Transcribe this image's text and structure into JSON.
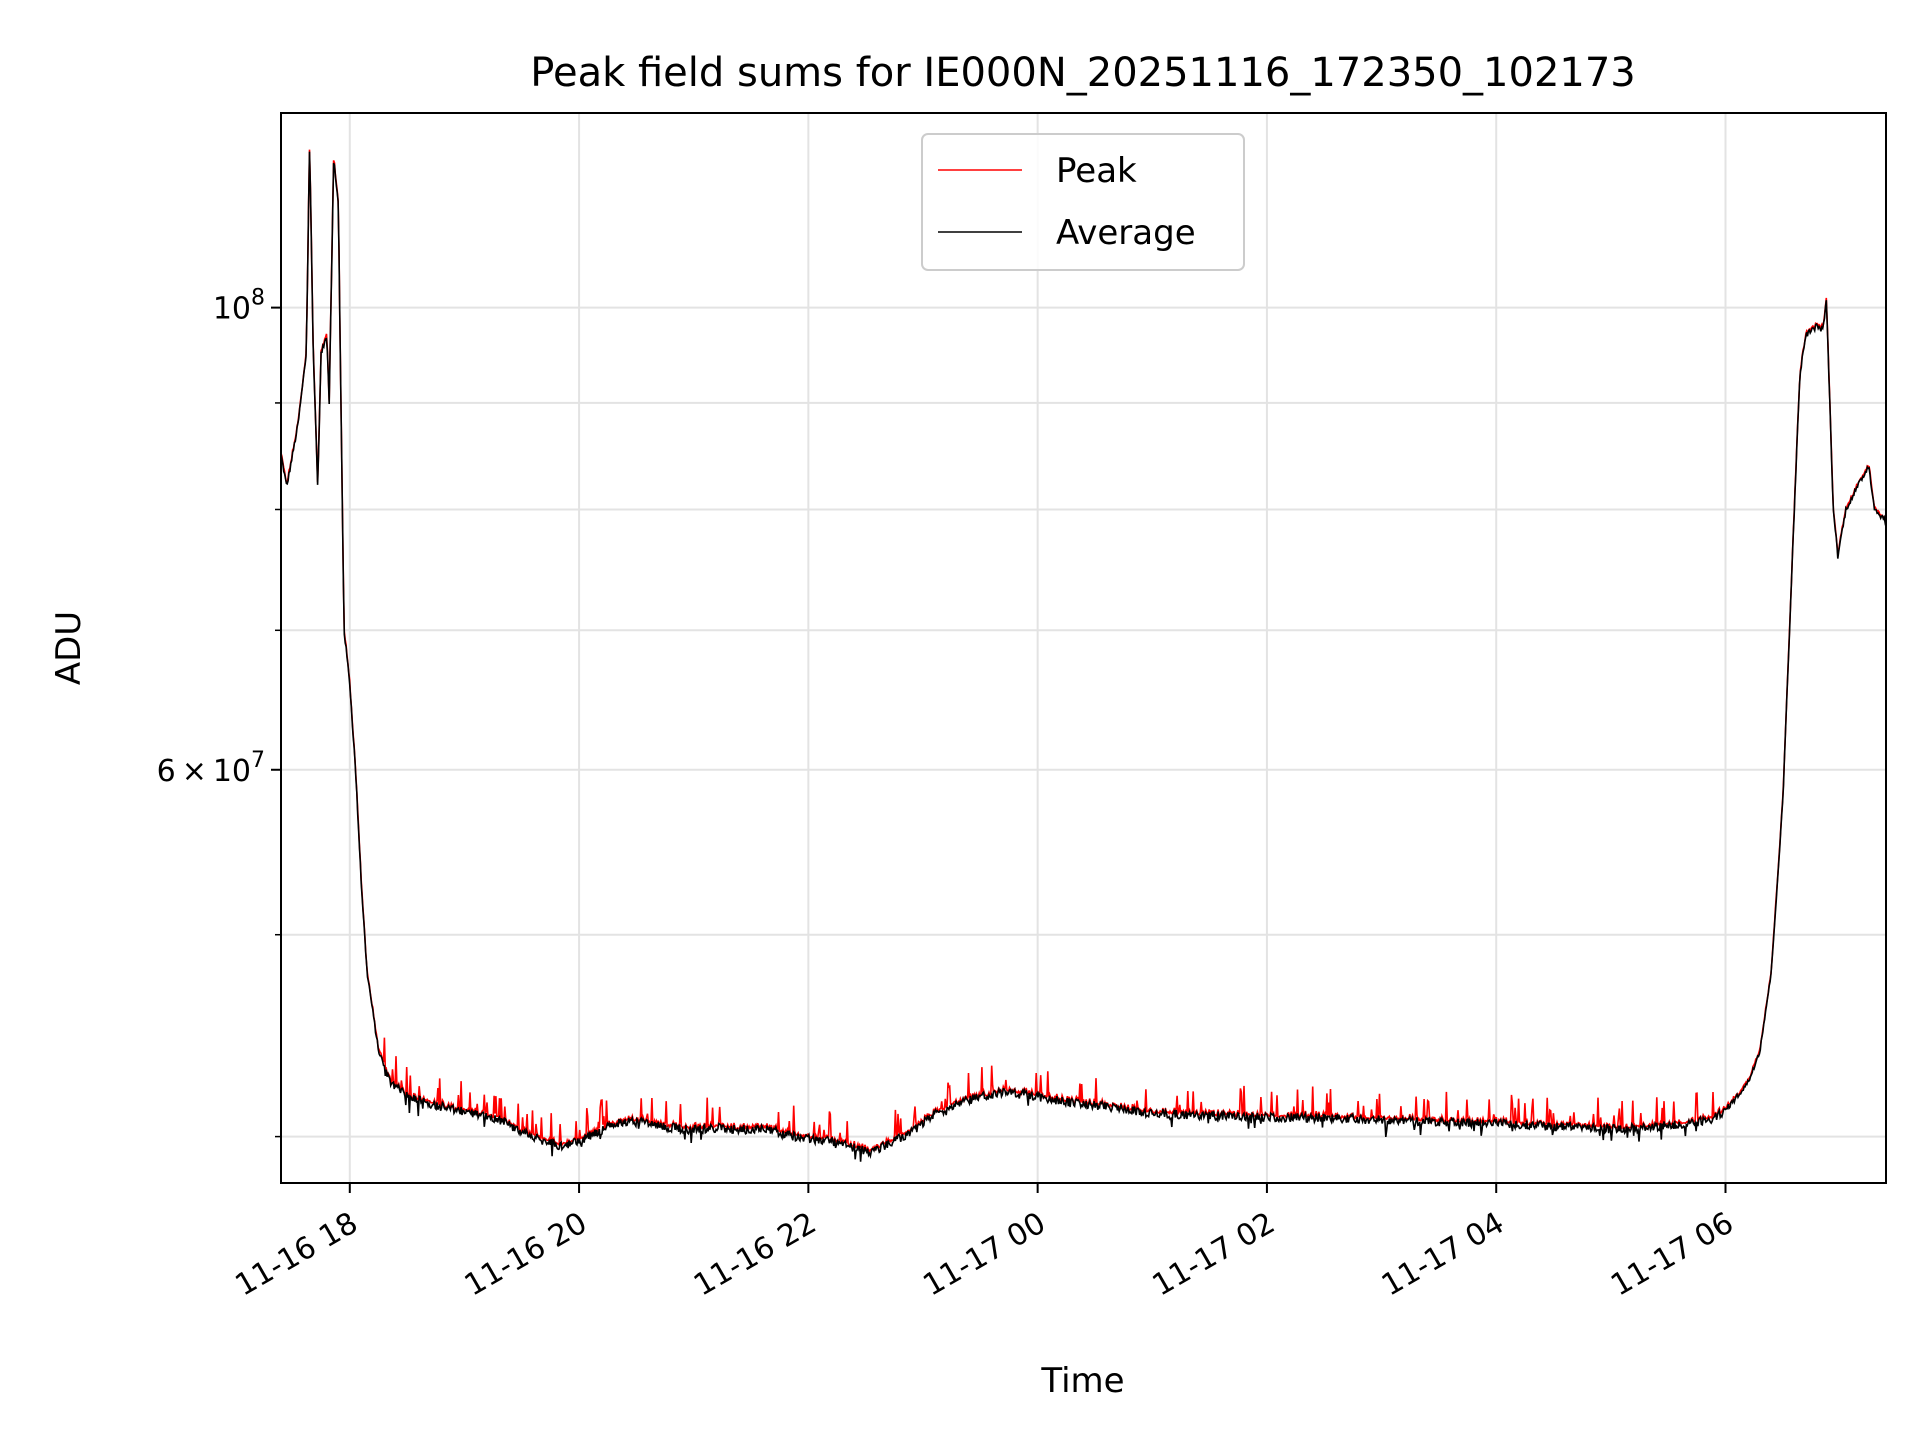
{
  "chart_data": {
    "type": "line",
    "title": "Peak field sums for IE000N_20251116_172350_102173",
    "xlabel": "Time",
    "ylabel": "ADU",
    "yscale": "log",
    "xlim": [
      17.4,
      31.4
    ],
    "ylim": [
      38000000,
      124000000
    ],
    "grid": true,
    "legend_position": "top-center",
    "x_ticks": [
      {
        "value": 18,
        "label": "11-16 18"
      },
      {
        "value": 20,
        "label": "11-16 20"
      },
      {
        "value": 22,
        "label": "11-16 22"
      },
      {
        "value": 24,
        "label": "11-17 00"
      },
      {
        "value": 26,
        "label": "11-17 02"
      },
      {
        "value": 28,
        "label": "11-17 04"
      },
      {
        "value": 30,
        "label": "11-17 06"
      }
    ],
    "y_major_ticks": [
      {
        "value": 60000000,
        "base": "6",
        "times": "×",
        "exp_base": "10",
        "exp": "7"
      },
      {
        "value": 100000000,
        "base": "",
        "times": "",
        "exp_base": "10",
        "exp": "8"
      }
    ],
    "y_minor_ticks": [
      40000000,
      50000000,
      70000000,
      80000000,
      90000000
    ],
    "series": [
      {
        "name": "Peak",
        "color": "#ff0000"
      },
      {
        "name": "Average",
        "color": "#000000"
      }
    ],
    "average_points": [
      [
        17.4,
        85000000
      ],
      [
        17.45,
        82000000
      ],
      [
        17.55,
        88000000
      ],
      [
        17.62,
        95000000
      ],
      [
        17.65,
        120000000
      ],
      [
        17.68,
        96000000
      ],
      [
        17.72,
        82000000
      ],
      [
        17.75,
        95000000
      ],
      [
        17.8,
        97000000
      ],
      [
        17.82,
        90000000
      ],
      [
        17.86,
        118000000
      ],
      [
        17.9,
        112000000
      ],
      [
        17.95,
        70000000
      ],
      [
        18.0,
        66000000
      ],
      [
        18.05,
        60000000
      ],
      [
        18.1,
        53000000
      ],
      [
        18.15,
        48000000
      ],
      [
        18.25,
        44000000
      ],
      [
        18.35,
        42500000
      ],
      [
        18.5,
        41800000
      ],
      [
        18.7,
        41500000
      ],
      [
        18.9,
        41200000
      ],
      [
        19.1,
        41000000
      ],
      [
        19.3,
        40800000
      ],
      [
        19.5,
        40200000
      ],
      [
        19.7,
        39800000
      ],
      [
        19.85,
        39600000
      ],
      [
        20.0,
        39800000
      ],
      [
        20.2,
        40300000
      ],
      [
        20.4,
        40700000
      ],
      [
        20.6,
        40600000
      ],
      [
        20.8,
        40400000
      ],
      [
        21.0,
        40300000
      ],
      [
        21.2,
        40400000
      ],
      [
        21.4,
        40300000
      ],
      [
        21.6,
        40400000
      ],
      [
        21.8,
        40100000
      ],
      [
        22.0,
        39900000
      ],
      [
        22.2,
        39800000
      ],
      [
        22.4,
        39500000
      ],
      [
        22.55,
        39300000
      ],
      [
        22.7,
        39700000
      ],
      [
        22.9,
        40200000
      ],
      [
        23.1,
        41000000
      ],
      [
        23.3,
        41500000
      ],
      [
        23.5,
        41800000
      ],
      [
        23.7,
        42000000
      ],
      [
        23.9,
        41900000
      ],
      [
        24.1,
        41700000
      ],
      [
        24.3,
        41500000
      ],
      [
        24.5,
        41400000
      ],
      [
        24.7,
        41300000
      ],
      [
        24.9,
        41100000
      ],
      [
        25.2,
        41000000
      ],
      [
        25.5,
        40950000
      ],
      [
        25.8,
        40900000
      ],
      [
        26.1,
        40850000
      ],
      [
        26.4,
        40850000
      ],
      [
        26.7,
        40800000
      ],
      [
        27.0,
        40750000
      ],
      [
        27.3,
        40700000
      ],
      [
        27.6,
        40650000
      ],
      [
        27.9,
        40600000
      ],
      [
        28.2,
        40550000
      ],
      [
        28.5,
        40450000
      ],
      [
        28.8,
        40400000
      ],
      [
        29.1,
        40350000
      ],
      [
        29.4,
        40450000
      ],
      [
        29.7,
        40600000
      ],
      [
        29.9,
        40800000
      ],
      [
        30.0,
        41200000
      ],
      [
        30.1,
        41800000
      ],
      [
        30.2,
        42500000
      ],
      [
        30.3,
        44000000
      ],
      [
        30.4,
        48000000
      ],
      [
        30.5,
        58000000
      ],
      [
        30.6,
        80000000
      ],
      [
        30.65,
        93000000
      ],
      [
        30.7,
        97000000
      ],
      [
        30.8,
        98000000
      ],
      [
        30.85,
        97500000
      ],
      [
        30.88,
        101000000
      ],
      [
        30.91,
        90000000
      ],
      [
        30.94,
        80000000
      ],
      [
        30.98,
        76000000
      ],
      [
        31.05,
        80000000
      ],
      [
        31.15,
        82000000
      ],
      [
        31.25,
        84000000
      ],
      [
        31.3,
        80000000
      ],
      [
        31.4,
        79000000
      ]
    ]
  }
}
